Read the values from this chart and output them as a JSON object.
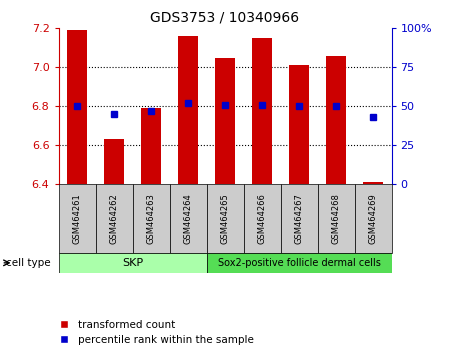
{
  "title": "GDS3753 / 10340966",
  "samples": [
    "GSM464261",
    "GSM464262",
    "GSM464263",
    "GSM464264",
    "GSM464265",
    "GSM464266",
    "GSM464267",
    "GSM464268",
    "GSM464269"
  ],
  "red_values": [
    7.19,
    6.63,
    6.79,
    7.16,
    7.05,
    7.15,
    7.01,
    7.06,
    6.41
  ],
  "blue_values": [
    50,
    45,
    47,
    52,
    51,
    51,
    50,
    50,
    43
  ],
  "ylim_left": [
    6.4,
    7.2
  ],
  "ylim_right": [
    0,
    100
  ],
  "left_ticks": [
    6.4,
    6.6,
    6.8,
    7.0,
    7.2
  ],
  "right_ticks": [
    0,
    25,
    50,
    75,
    100
  ],
  "right_tick_labels": [
    "0",
    "25",
    "50",
    "75",
    "100%"
  ],
  "bar_bottom": 6.4,
  "bar_color": "#cc0000",
  "blue_color": "#0000cc",
  "skp_color": "#aaffaa",
  "sox2_color": "#55dd55",
  "label_box_color": "#cccccc",
  "legend_red_label": "transformed count",
  "legend_blue_label": "percentile rank within the sample",
  "bar_width": 0.55,
  "background_color": "#ffffff",
  "left_tick_color": "#cc0000",
  "right_tick_color": "#0000cc",
  "grid_yticks": [
    6.6,
    6.8,
    7.0
  ],
  "skp_samples": 4,
  "sox2_samples": 5
}
